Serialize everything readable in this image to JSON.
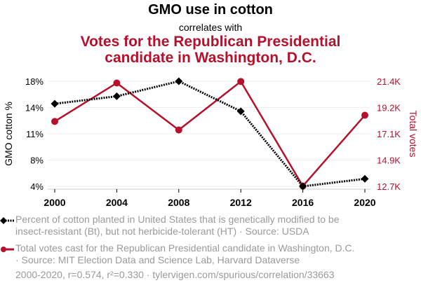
{
  "header": {
    "title": "GMO use in cotton",
    "subtitle": "correlates with",
    "title2_line1": "Votes for the Republican Presidential",
    "title2_line2": "candidate in Washington, D.C."
  },
  "colors": {
    "series1": "#000000",
    "series2": "#b5112c",
    "legend_text": "#9a9a9a",
    "grid": "#eeeeee"
  },
  "chart_data": {
    "type": "line",
    "title": "GMO use in cotton correlates with Votes for the Republican Presidential candidate in Washington, D.C.",
    "x": [
      2000,
      2004,
      2008,
      2012,
      2016,
      2020
    ],
    "xticks": [
      "2000",
      "2004",
      "2008",
      "2012",
      "2016",
      "2020"
    ],
    "ylabel_left": "GMO cotton %",
    "ylabel_right": "Total votes",
    "yticks_left": [
      "18%",
      "14%",
      "11%",
      "8%",
      "4%"
    ],
    "yticks_right": [
      "21.4K",
      "19.2K",
      "17.1K",
      "14.9K",
      "12.7K"
    ],
    "ylim_left": [
      4,
      18
    ],
    "ylim_right": [
      12700,
      21400
    ],
    "grid": true,
    "series": [
      {
        "name": "Percent of cotton planted in United States that is genetically modified to be insect-resistant (Bt), but not herbicide-tolerant (HT) · Source: USDA",
        "axis": "left",
        "style": "dotted-diamond",
        "values": [
          15,
          16,
          18,
          14,
          4,
          5
        ]
      },
      {
        "name": "Total votes cast for the Republican Presidential candidate in Washington, D.C. · Source: MIT Election Data and Science Lab, Harvard Dataverse",
        "axis": "right",
        "style": "solid-circle",
        "values": [
          18073,
          21256,
          17367,
          21381,
          12723,
          18586
        ]
      }
    ]
  },
  "legend": {
    "item1_line1": "Percent of cotton planted in United States that is genetically modified to be",
    "item1_line2": "insect-resistant (Bt), but not herbicide-tolerant (HT) · Source: USDA",
    "item2_line1": "Total votes cast for the Republican Presidential candidate in Washington, D.C.",
    "item2_line2": "· Source: MIT Election Data and Science Lab, Harvard Dataverse"
  },
  "footer": "2000-2020, r=0.574, r²=0.330 · tylervigen.com/spurious/correlation/33663"
}
